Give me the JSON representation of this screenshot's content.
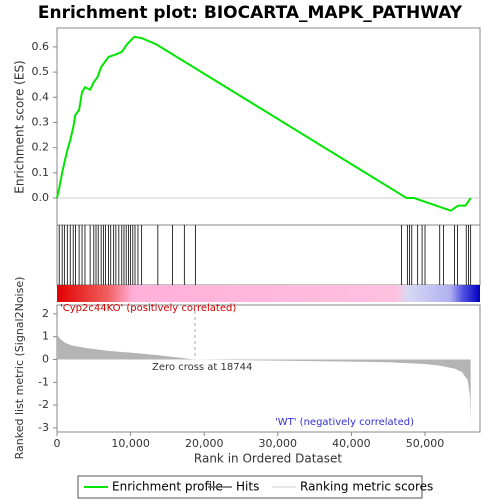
{
  "chart_data": [
    {
      "type": "line",
      "title": "Enrichment plot: BIOCARTA_MAPK_PATHWAY",
      "ylabel": "Enrichment score (ES)",
      "xlim": [
        0,
        57470
      ],
      "ylim": [
        -0.107,
        0.675
      ],
      "yticks": [
        {
          "value": 0,
          "label": "0.0"
        },
        0.1,
        0.2,
        0.3,
        0.4,
        0.5,
        0.6
      ],
      "series": [
        {
          "name": "Enrichment profile",
          "color": "#00e600",
          "x": [
            0,
            300,
            700,
            1000,
            1400,
            1800,
            2200,
            2500,
            3000,
            3400,
            3800,
            4500,
            5000,
            5500,
            6000,
            6500,
            7000,
            8000,
            8800,
            9500,
            10500,
            11500,
            13500,
            47500,
            48500,
            50000,
            52000,
            53500,
            54500,
            55500,
            56200
          ],
          "values": [
            0,
            0.04,
            0.1,
            0.14,
            0.19,
            0.23,
            0.28,
            0.33,
            0.35,
            0.42,
            0.44,
            0.43,
            0.46,
            0.48,
            0.52,
            0.54,
            0.56,
            0.57,
            0.58,
            0.61,
            0.64,
            0.635,
            0.61,
            0.0,
            0.0,
            -0.015,
            -0.035,
            -0.05,
            -0.03,
            -0.03,
            0.0
          ]
        }
      ]
    },
    {
      "type": "rug",
      "xlim": [
        0,
        57470
      ],
      "series": [
        {
          "name": "Hits",
          "color": "#000000",
          "x": [
            300,
            700,
            1000,
            1400,
            1800,
            2200,
            2500,
            3000,
            3400,
            3800,
            4500,
            5000,
            5300,
            5600,
            6000,
            6300,
            6600,
            7000,
            7300,
            7700,
            8000,
            8400,
            8800,
            9100,
            9400,
            9700,
            10000,
            10300,
            10600,
            11000,
            11500,
            13700,
            15700,
            17300,
            18800,
            46800,
            47600,
            47900,
            48200,
            49000,
            49600,
            50000,
            52000,
            52500,
            54000,
            54400,
            55600,
            55900,
            56200
          ]
        }
      ]
    },
    {
      "type": "area",
      "ylabel": "Ranked list metric (Signal2Noise)",
      "xlabel": "Rank in Ordered Dataset",
      "xlim": [
        0,
        57470
      ],
      "ylim": [
        -3.18,
        2.39
      ],
      "xticks": [
        0,
        {
          "value": 10000,
          "label": "10,000"
        },
        {
          "value": 20000,
          "label": "20,000"
        },
        {
          "value": 30000,
          "label": "30,000"
        },
        {
          "value": 40000,
          "label": "40,000"
        },
        {
          "value": 50000,
          "label": "50,000"
        }
      ],
      "yticks": [
        -3,
        -2,
        -1,
        0,
        1,
        2
      ],
      "zero_cross": 18744,
      "zero_cross_label": "Zero cross at 18744",
      "positive_label": "'Cyp2c44KO' (positively correlated)",
      "negative_label": "'WT' (negatively correlated)",
      "series": [
        {
          "name": "Ranking metric scores",
          "color": "#b4b4b4",
          "x": [
            0,
            200,
            600,
            1200,
            2000,
            4000,
            7000,
            10000,
            14000,
            18744,
            25000,
            35000,
            45000,
            50000,
            52000,
            54000,
            55000,
            55800,
            56100,
            56200
          ],
          "values": [
            1.2,
            1.0,
            0.85,
            0.72,
            0.62,
            0.5,
            0.38,
            0.3,
            0.18,
            0,
            -0.03,
            -0.07,
            -0.12,
            -0.2,
            -0.27,
            -0.4,
            -0.55,
            -0.9,
            -1.6,
            -2.8
          ]
        }
      ]
    }
  ]
}
